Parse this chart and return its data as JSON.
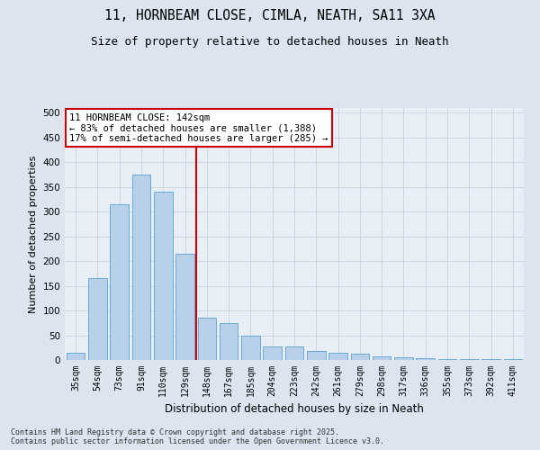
{
  "title1": "11, HORNBEAM CLOSE, CIMLA, NEATH, SA11 3XA",
  "title2": "Size of property relative to detached houses in Neath",
  "xlabel": "Distribution of detached houses by size in Neath",
  "ylabel": "Number of detached properties",
  "categories": [
    "35sqm",
    "54sqm",
    "73sqm",
    "91sqm",
    "110sqm",
    "129sqm",
    "148sqm",
    "167sqm",
    "185sqm",
    "204sqm",
    "223sqm",
    "242sqm",
    "261sqm",
    "279sqm",
    "298sqm",
    "317sqm",
    "336sqm",
    "355sqm",
    "373sqm",
    "392sqm",
    "411sqm"
  ],
  "values": [
    15,
    165,
    315,
    375,
    340,
    215,
    85,
    75,
    50,
    28,
    28,
    18,
    15,
    12,
    8,
    5,
    3,
    2,
    2,
    1,
    1
  ],
  "bar_color": "#b8d0ea",
  "bar_edge_color": "#6aaad4",
  "vline_index": 6,
  "vline_color": "#cc0000",
  "annotation_text": "11 HORNBEAM CLOSE: 142sqm\n← 83% of detached houses are smaller (1,388)\n17% of semi-detached houses are larger (285) →",
  "annotation_box_facecolor": "#ffffff",
  "annotation_box_edgecolor": "#cc0000",
  "grid_color": "#ccd5e0",
  "background_color": "#dce4ef",
  "plot_bg_color": "#e8eef6",
  "footer_text": "Contains HM Land Registry data © Crown copyright and database right 2025.\nContains public sector information licensed under the Open Government Licence v3.0.",
  "ylim": [
    0,
    510
  ],
  "yticks": [
    0,
    50,
    100,
    150,
    200,
    250,
    300,
    350,
    400,
    450,
    500
  ]
}
